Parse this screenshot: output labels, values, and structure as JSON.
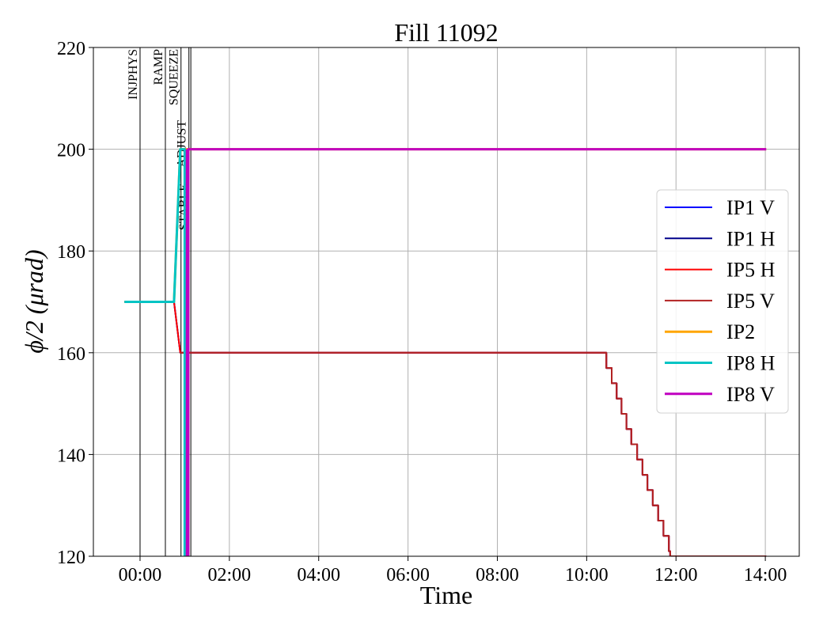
{
  "chart_data": {
    "type": "line",
    "title": "Fill 11092",
    "xlabel": "Time",
    "ylabel": "ϕ/2 (μrad)",
    "x_unit": "hours",
    "xlim": [
      -1.045,
      14.76
    ],
    "ylim": [
      120,
      220
    ],
    "xticks": [
      {
        "value": 0,
        "label": "00:00"
      },
      {
        "value": 2,
        "label": "02:00"
      },
      {
        "value": 4,
        "label": "04:00"
      },
      {
        "value": 6,
        "label": "06:00"
      },
      {
        "value": 8,
        "label": "08:00"
      },
      {
        "value": 10,
        "label": "10:00"
      },
      {
        "value": 12,
        "label": "12:00"
      },
      {
        "value": 14,
        "label": "14:00"
      }
    ],
    "yticks": [
      120,
      140,
      160,
      180,
      200,
      220
    ],
    "grid": true,
    "legend_position": "center-right",
    "phases": [
      {
        "label": "INJPHYS",
        "x": 0.0
      },
      {
        "label": "RAMP",
        "x": 0.567
      },
      {
        "label": "SQUEEZE",
        "x": 0.917
      },
      {
        "label": "ADJUST",
        "x": 1.094
      },
      {
        "label": "STABLE",
        "x": 1.137
      }
    ],
    "series": [
      {
        "name": "IP1 V",
        "color": "#0000ff",
        "width": 2,
        "points": [
          [
            -0.35,
            170
          ],
          [
            0.76,
            170
          ],
          [
            0.9,
            160
          ],
          [
            10.44,
            160
          ],
          [
            10.44,
            157
          ],
          [
            10.56,
            157
          ],
          [
            10.56,
            154
          ],
          [
            10.67,
            154
          ],
          [
            10.67,
            151
          ],
          [
            10.78,
            151
          ],
          [
            10.78,
            148
          ],
          [
            10.89,
            148
          ],
          [
            10.89,
            145
          ],
          [
            11.0,
            145
          ],
          [
            11.0,
            142
          ],
          [
            11.13,
            142
          ],
          [
            11.13,
            139
          ],
          [
            11.25,
            139
          ],
          [
            11.25,
            136
          ],
          [
            11.36,
            136
          ],
          [
            11.36,
            133
          ],
          [
            11.48,
            133
          ],
          [
            11.48,
            130
          ],
          [
            11.6,
            130
          ],
          [
            11.6,
            127
          ],
          [
            11.72,
            127
          ],
          [
            11.72,
            124
          ],
          [
            11.84,
            124
          ],
          [
            11.84,
            121
          ],
          [
            11.87,
            121
          ],
          [
            11.87,
            120
          ],
          [
            14.02,
            120
          ]
        ]
      },
      {
        "name": "IP1 H",
        "color": "#00008b",
        "width": 2,
        "points": [
          [
            -0.35,
            170
          ],
          [
            0.76,
            170
          ],
          [
            0.9,
            160
          ],
          [
            10.44,
            160
          ],
          [
            10.44,
            157
          ],
          [
            10.56,
            157
          ],
          [
            10.56,
            154
          ],
          [
            10.67,
            154
          ],
          [
            10.67,
            151
          ],
          [
            10.78,
            151
          ],
          [
            10.78,
            148
          ],
          [
            10.89,
            148
          ],
          [
            10.89,
            145
          ],
          [
            11.0,
            145
          ],
          [
            11.0,
            142
          ],
          [
            11.13,
            142
          ],
          [
            11.13,
            139
          ],
          [
            11.25,
            139
          ],
          [
            11.25,
            136
          ],
          [
            11.36,
            136
          ],
          [
            11.36,
            133
          ],
          [
            11.48,
            133
          ],
          [
            11.48,
            130
          ],
          [
            11.6,
            130
          ],
          [
            11.6,
            127
          ],
          [
            11.72,
            127
          ],
          [
            11.72,
            124
          ],
          [
            11.84,
            124
          ],
          [
            11.84,
            121
          ],
          [
            11.87,
            121
          ],
          [
            11.87,
            120
          ],
          [
            14.02,
            120
          ]
        ]
      },
      {
        "name": "IP5 H",
        "color": "#ff0000",
        "width": 2,
        "points": [
          [
            -0.35,
            170
          ],
          [
            0.76,
            170
          ],
          [
            0.9,
            160
          ],
          [
            10.44,
            160
          ],
          [
            10.44,
            157
          ],
          [
            10.56,
            157
          ],
          [
            10.56,
            154
          ],
          [
            10.67,
            154
          ],
          [
            10.67,
            151
          ],
          [
            10.78,
            151
          ],
          [
            10.78,
            148
          ],
          [
            10.89,
            148
          ],
          [
            10.89,
            145
          ],
          [
            11.0,
            145
          ],
          [
            11.0,
            142
          ],
          [
            11.13,
            142
          ],
          [
            11.13,
            139
          ],
          [
            11.25,
            139
          ],
          [
            11.25,
            136
          ],
          [
            11.36,
            136
          ],
          [
            11.36,
            133
          ],
          [
            11.48,
            133
          ],
          [
            11.48,
            130
          ],
          [
            11.6,
            130
          ],
          [
            11.6,
            127
          ],
          [
            11.72,
            127
          ],
          [
            11.72,
            124
          ],
          [
            11.84,
            124
          ],
          [
            11.84,
            121
          ],
          [
            11.87,
            121
          ],
          [
            11.87,
            120
          ],
          [
            14.02,
            120
          ]
        ]
      },
      {
        "name": "IP5 V",
        "color": "#b22222",
        "width": 2,
        "points": [
          [
            0.9,
            160
          ],
          [
            10.44,
            160
          ],
          [
            10.44,
            157
          ],
          [
            10.56,
            157
          ],
          [
            10.56,
            154
          ],
          [
            10.67,
            154
          ],
          [
            10.67,
            151
          ],
          [
            10.78,
            151
          ],
          [
            10.78,
            148
          ],
          [
            10.89,
            148
          ],
          [
            10.89,
            145
          ],
          [
            11.0,
            145
          ],
          [
            11.0,
            142
          ],
          [
            11.13,
            142
          ],
          [
            11.13,
            139
          ],
          [
            11.25,
            139
          ],
          [
            11.25,
            136
          ],
          [
            11.36,
            136
          ],
          [
            11.36,
            133
          ],
          [
            11.48,
            133
          ],
          [
            11.48,
            130
          ],
          [
            11.6,
            130
          ],
          [
            11.6,
            127
          ],
          [
            11.72,
            127
          ],
          [
            11.72,
            124
          ],
          [
            11.84,
            124
          ],
          [
            11.84,
            121
          ],
          [
            11.87,
            121
          ],
          [
            11.87,
            120
          ],
          [
            14.02,
            120
          ]
        ]
      },
      {
        "name": "IP2",
        "color": "#ffa500",
        "width": 3,
        "points": [
          [
            -0.35,
            170
          ],
          [
            0.76,
            170
          ],
          [
            0.9,
            200
          ],
          [
            14.02,
            200
          ]
        ]
      },
      {
        "name": "IP8 H",
        "color": "#00c4c4",
        "width": 3,
        "points": [
          [
            -0.35,
            170
          ],
          [
            0.76,
            170
          ],
          [
            0.9,
            200
          ],
          [
            1.0,
            200
          ],
          [
            1.0,
            110
          ]
        ]
      },
      {
        "name": "IP8 V",
        "color": "#c000c0",
        "width": 3,
        "points": [
          [
            1.05,
            200
          ],
          [
            1.05,
            110
          ],
          [
            1.08,
            110
          ],
          [
            1.08,
            200
          ],
          [
            14.02,
            200
          ]
        ]
      }
    ]
  }
}
